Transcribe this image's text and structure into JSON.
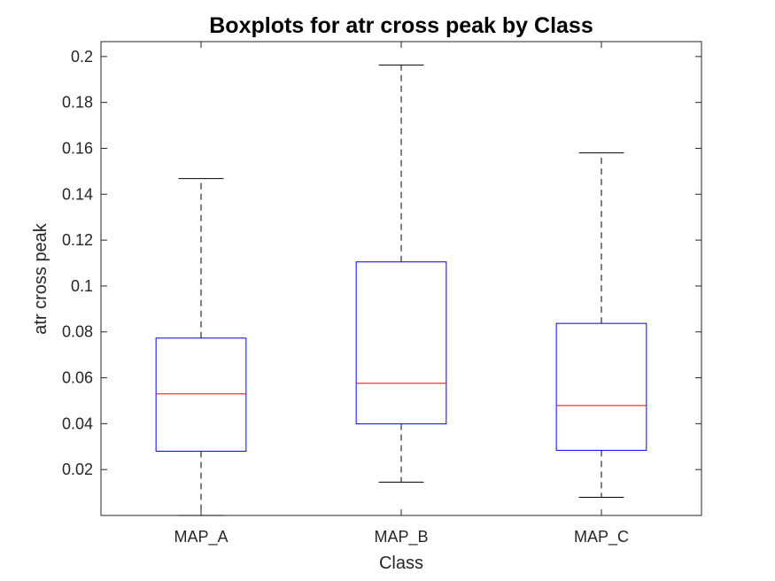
{
  "chart_data": {
    "type": "box",
    "title": "Boxplots for atr cross peak by Class",
    "xlabel": "Class",
    "ylabel": "atr cross peak",
    "ylim": [
      0.0,
      0.2065
    ],
    "yticks": [
      0.02,
      0.04,
      0.06,
      0.08,
      0.1,
      0.12,
      0.14,
      0.16,
      0.18,
      0.2
    ],
    "ytick_labels": [
      "0.02",
      "0.04",
      "0.06",
      "0.08",
      "0.1",
      "0.12",
      "0.14",
      "0.16",
      "0.18",
      "0.2"
    ],
    "categories": [
      "MAP_A",
      "MAP_B",
      "MAP_C"
    ],
    "boxes": [
      {
        "category": "MAP_A",
        "whisker_low": 0.0,
        "q1": 0.028,
        "median": 0.053,
        "q3": 0.0773,
        "whisker_high": 0.1468
      },
      {
        "category": "MAP_B",
        "whisker_low": 0.0145,
        "q1": 0.0399,
        "median": 0.0576,
        "q3": 0.1105,
        "whisker_high": 0.1963
      },
      {
        "category": "MAP_C",
        "whisker_low": 0.0079,
        "q1": 0.0284,
        "median": 0.0479,
        "q3": 0.0837,
        "whisker_high": 0.158
      }
    ],
    "colors": {
      "box": "#0000ff",
      "median": "#ff0000",
      "whisker": "#000000",
      "axis": "#262626"
    },
    "grid": false,
    "legend": "none"
  }
}
